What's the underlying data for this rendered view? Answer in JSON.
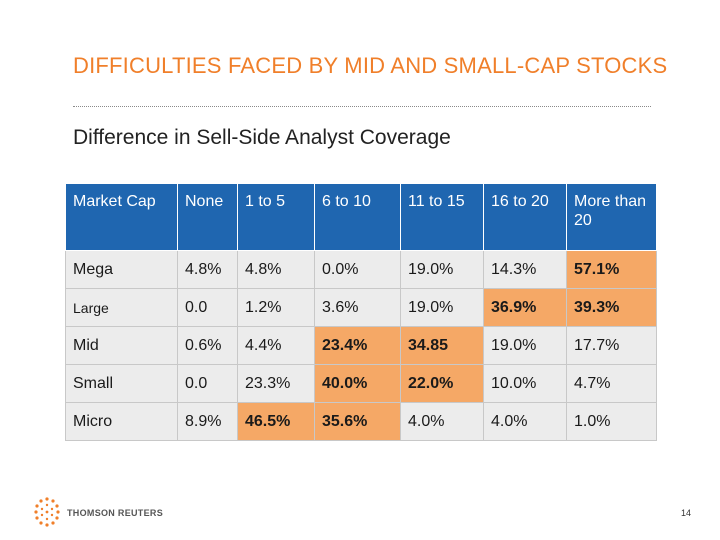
{
  "slide": {
    "title": "DIFFICULTIES FACED BY MID AND SMALL-CAP STOCKS",
    "subtitle": "Difference in Sell-Side Analyst Coverage",
    "page_number": "14",
    "logo_text": "THOMSON REUTERS",
    "accent_color": "#f07f2a",
    "header_color": "#1f66b0",
    "highlight_color": "#f5a866"
  },
  "table": {
    "headers": [
      "Market Cap",
      "None",
      "1 to 5",
      "6 to 10",
      "11 to 15",
      "16 to 20",
      "More than 20"
    ],
    "rows": [
      {
        "label": "Mega",
        "cells": [
          {
            "v": "4.8%"
          },
          {
            "v": "4.8%"
          },
          {
            "v": "0.0%"
          },
          {
            "v": "19.0%"
          },
          {
            "v": "14.3%"
          },
          {
            "v": "57.1%",
            "h": true
          }
        ]
      },
      {
        "label": "Large",
        "small": true,
        "cells": [
          {
            "v": "0.0"
          },
          {
            "v": "1.2%"
          },
          {
            "v": "3.6%"
          },
          {
            "v": "19.0%"
          },
          {
            "v": "36.9%",
            "h": true
          },
          {
            "v": "39.3%",
            "h": true
          }
        ]
      },
      {
        "label": "Mid",
        "cells": [
          {
            "v": "0.6%"
          },
          {
            "v": "4.4%"
          },
          {
            "v": "23.4%",
            "h": true
          },
          {
            "v": "34.85",
            "h": true
          },
          {
            "v": "19.0%"
          },
          {
            "v": "17.7%"
          }
        ]
      },
      {
        "label": "Small",
        "cells": [
          {
            "v": "0.0"
          },
          {
            "v": "23.3%"
          },
          {
            "v": "40.0%",
            "h": true
          },
          {
            "v": "22.0%",
            "h": true
          },
          {
            "v": "10.0%"
          },
          {
            "v": "4.7%"
          }
        ]
      },
      {
        "label": "Micro",
        "cells": [
          {
            "v": "8.9%"
          },
          {
            "v": "46.5%",
            "h": true
          },
          {
            "v": "35.6%",
            "h": true
          },
          {
            "v": "4.0%"
          },
          {
            "v": "4.0%"
          },
          {
            "v": "1.0%"
          }
        ]
      }
    ]
  }
}
